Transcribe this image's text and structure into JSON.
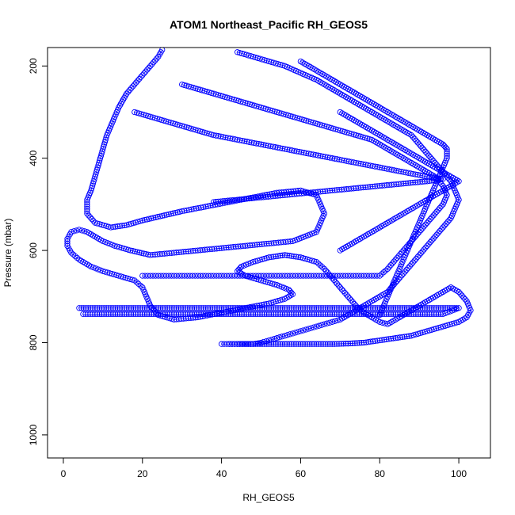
{
  "chart_data": {
    "type": "scatter",
    "title": "ATOM1 Northeast_Pacific RH_GEOS5",
    "xlabel": "RH_GEOS5",
    "ylabel": "Pressure (mbar)",
    "xlim": [
      -4,
      108
    ],
    "ylim": [
      1050,
      160
    ],
    "y_reversed": true,
    "x_ticks": [
      0,
      20,
      40,
      60,
      80,
      100
    ],
    "y_ticks": [
      200,
      400,
      600,
      800,
      1000
    ],
    "grid": false,
    "legend": "none",
    "marker": "open-circle",
    "color": "#0000ff",
    "series": [
      {
        "x": [
          25,
          24,
          22,
          20,
          18,
          16,
          14,
          13,
          12,
          11,
          10,
          9,
          8,
          7,
          6,
          6,
          8,
          12,
          16,
          20,
          25,
          30,
          36,
          42,
          48,
          54,
          60,
          64,
          66,
          64,
          58,
          52,
          46,
          40,
          34,
          28,
          22,
          17,
          13,
          10,
          8,
          6,
          4,
          2,
          1,
          1,
          2,
          4,
          7,
          10,
          14,
          18,
          20,
          21,
          22,
          24,
          28,
          34,
          40,
          46,
          52,
          56,
          58,
          57,
          54,
          50,
          46,
          44,
          45,
          48,
          52,
          56,
          60,
          64,
          66,
          68,
          70,
          72,
          74,
          76,
          78,
          80,
          82,
          84,
          86,
          88,
          90,
          92,
          94,
          96,
          98,
          100,
          102,
          103,
          102,
          100,
          96,
          92,
          88,
          84,
          80,
          76,
          72,
          68,
          64,
          60,
          56,
          52,
          48,
          44,
          42
        ],
        "y": [
          165,
          180,
          200,
          220,
          240,
          260,
          290,
          310,
          330,
          350,
          380,
          410,
          440,
          470,
          490,
          520,
          540,
          550,
          545,
          535,
          525,
          515,
          505,
          495,
          485,
          475,
          470,
          480,
          520,
          560,
          580,
          585,
          590,
          595,
          600,
          605,
          610,
          600,
          590,
          580,
          570,
          560,
          555,
          560,
          575,
          590,
          605,
          620,
          635,
          645,
          655,
          665,
          680,
          700,
          720,
          740,
          750,
          745,
          735,
          725,
          715,
          705,
          695,
          685,
          675,
          665,
          655,
          645,
          635,
          625,
          615,
          610,
          615,
          625,
          640,
          660,
          680,
          700,
          720,
          735,
          745,
          755,
          760,
          750,
          740,
          730,
          720,
          710,
          700,
          690,
          680,
          690,
          710,
          730,
          745,
          755,
          765,
          775,
          785,
          790,
          795,
          800,
          802,
          803,
          803,
          803,
          803,
          803,
          803,
          803,
          803
        ]
      },
      {
        "x": [
          30,
          34,
          38,
          42,
          46,
          50,
          54,
          58,
          62,
          66,
          70,
          74,
          78,
          82,
          86,
          90,
          94,
          96,
          97,
          96,
          94,
          92,
          90,
          88,
          86,
          84,
          82,
          80,
          78,
          76,
          74,
          72,
          70,
          68,
          66,
          64,
          62,
          60,
          58,
          56,
          54,
          52,
          50,
          48,
          46,
          44,
          42,
          40,
          38,
          36,
          34,
          32,
          30,
          28,
          26,
          24,
          22,
          20
        ],
        "y": [
          240,
          250,
          260,
          270,
          280,
          290,
          300,
          310,
          320,
          330,
          340,
          350,
          360,
          380,
          400,
          420,
          440,
          460,
          480,
          500,
          520,
          540,
          560,
          580,
          600,
          620,
          640,
          655,
          655,
          655,
          655,
          655,
          655,
          655,
          655,
          655,
          655,
          655,
          655,
          655,
          655,
          655,
          655,
          655,
          655,
          655,
          655,
          655,
          655,
          655,
          655,
          655,
          655,
          655,
          655,
          655,
          655,
          655
        ]
      },
      {
        "x": [
          4,
          8,
          12,
          16,
          20,
          24,
          28,
          32,
          36,
          40,
          44,
          48,
          52,
          56,
          60,
          64,
          68,
          72,
          76,
          80,
          84,
          88,
          92,
          96,
          100,
          96,
          92,
          88,
          84,
          80,
          76,
          72,
          68,
          64,
          60,
          56,
          52,
          48,
          44,
          40,
          36,
          32,
          28,
          24,
          20,
          16,
          12,
          8,
          5
        ],
        "y": [
          725,
          725,
          725,
          725,
          725,
          725,
          725,
          725,
          725,
          725,
          725,
          725,
          725,
          725,
          725,
          725,
          725,
          725,
          725,
          725,
          725,
          725,
          725,
          725,
          725,
          738,
          738,
          738,
          738,
          738,
          738,
          738,
          738,
          738,
          738,
          738,
          738,
          738,
          738,
          738,
          738,
          738,
          738,
          738,
          738,
          738,
          738,
          738,
          738
        ]
      },
      {
        "x": [
          44,
          48,
          52,
          56,
          60,
          64,
          68,
          72,
          76,
          80,
          84,
          88,
          90,
          92,
          94,
          96,
          98,
          99,
          100,
          99,
          98,
          96,
          94,
          92,
          90,
          88,
          86,
          84,
          82,
          80,
          78,
          76,
          74,
          72,
          70,
          68,
          66,
          64,
          62,
          60,
          58,
          56,
          54,
          52,
          50,
          48,
          46,
          44,
          42,
          40
        ],
        "y": [
          170,
          180,
          190,
          200,
          215,
          230,
          250,
          270,
          290,
          310,
          330,
          350,
          370,
          390,
          410,
          430,
          450,
          470,
          490,
          510,
          530,
          550,
          570,
          590,
          610,
          630,
          650,
          670,
          690,
          700,
          710,
          720,
          730,
          740,
          750,
          755,
          760,
          765,
          770,
          775,
          780,
          785,
          790,
          795,
          800,
          803,
          803,
          803,
          803,
          803
        ]
      },
      {
        "x": [
          38,
          44,
          50,
          56,
          62,
          68,
          74,
          80,
          86,
          92,
          96,
          92,
          86,
          80,
          74,
          68,
          62,
          56,
          50,
          44,
          38,
          34,
          30,
          26,
          22,
          18
        ],
        "y": [
          495,
          490,
          485,
          480,
          475,
          470,
          465,
          460,
          455,
          450,
          445,
          440,
          430,
          420,
          410,
          400,
          390,
          380,
          370,
          360,
          350,
          340,
          330,
          320,
          310,
          300
        ]
      },
      {
        "x": [
          60,
          62,
          64,
          66,
          68,
          70,
          72,
          74,
          76,
          78,
          80,
          82,
          84,
          86,
          88,
          90,
          92,
          94,
          96,
          97,
          97,
          96,
          95,
          94,
          93,
          92,
          91,
          90,
          89,
          88,
          87,
          86,
          85,
          84,
          83,
          82,
          81,
          80
        ],
        "y": [
          190,
          200,
          210,
          220,
          230,
          240,
          250,
          260,
          270,
          280,
          290,
          300,
          310,
          320,
          330,
          340,
          350,
          360,
          370,
          380,
          400,
          420,
          440,
          460,
          480,
          500,
          520,
          540,
          560,
          580,
          600,
          620,
          640,
          660,
          680,
          700,
          720,
          740
        ]
      },
      {
        "x": [
          70,
          72,
          74,
          76,
          78,
          80,
          82,
          84,
          86,
          88,
          90,
          92,
          94,
          96,
          98,
          100,
          98,
          96,
          94,
          92,
          90,
          88,
          86,
          84,
          82,
          80,
          78,
          76,
          74,
          72,
          70
        ],
        "y": [
          300,
          310,
          320,
          330,
          340,
          350,
          360,
          370,
          380,
          390,
          400,
          410,
          420,
          430,
          440,
          450,
          460,
          470,
          480,
          490,
          500,
          510,
          520,
          530,
          540,
          550,
          560,
          570,
          580,
          590,
          600
        ]
      }
    ]
  }
}
